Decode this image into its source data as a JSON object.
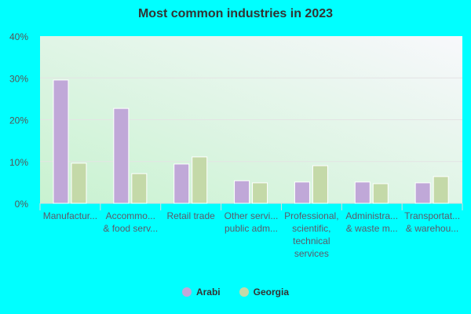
{
  "chart_data": {
    "type": "bar",
    "title": "Most common industries in 2023",
    "categories": [
      [
        "Manufactur..."
      ],
      [
        "Accommo...",
        "& food serv..."
      ],
      [
        "Retail trade"
      ],
      [
        "Other servi...",
        "public adm..."
      ],
      [
        "Professional,",
        "scientific,",
        "technical",
        "services"
      ],
      [
        "Administra...",
        "& waste m..."
      ],
      [
        "Transportat...",
        "& warehou..."
      ]
    ],
    "series": [
      {
        "name": "Arabi",
        "color": "#c0a8d8",
        "values": [
          29.5,
          22.7,
          9.4,
          5.4,
          5.1,
          5.1,
          4.9
        ]
      },
      {
        "name": "Georgia",
        "color": "#c4d9a8",
        "values": [
          9.6,
          7.1,
          11.1,
          4.9,
          9.0,
          4.7,
          6.4
        ]
      }
    ],
    "ylim": [
      0,
      40
    ],
    "yticks": [
      "0%",
      "10%",
      "20%",
      "30%",
      "40%"
    ],
    "grid": true,
    "legend": "bottom"
  }
}
